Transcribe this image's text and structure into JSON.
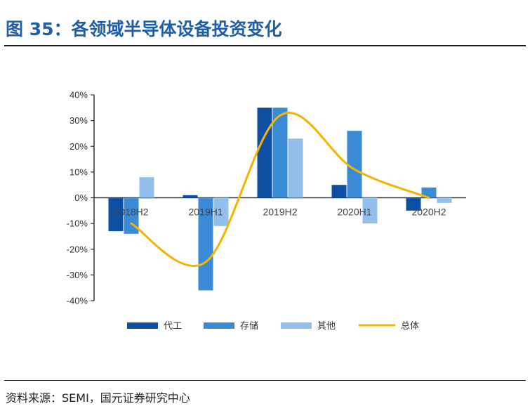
{
  "figure": {
    "title": "图 35：各领域半导体设备投资变化",
    "source": "资料来源：SEMI，国元证券研究中心"
  },
  "colors": {
    "title": "#1f5fa8",
    "foundry": "#0d4fa3",
    "memory": "#3a8ad6",
    "other": "#92c0ea",
    "total": "#f5b400"
  },
  "chart_data": {
    "type": "bar",
    "title": "各领域半导体设备投资变化",
    "categories": [
      "2018H2",
      "2019H1",
      "2019H2",
      "2020H1",
      "2020H2"
    ],
    "ylim": [
      -40,
      40
    ],
    "yticks": [
      40,
      30,
      20,
      10,
      0,
      -10,
      -20,
      -30,
      -40
    ],
    "ytick_labels": [
      "40%",
      "30%",
      "20%",
      "10%",
      "0%",
      "-10%",
      "-20%",
      "-30%",
      "-40%"
    ],
    "series": [
      {
        "name": "代工",
        "kind": "bar",
        "color_key": "foundry",
        "values": [
          -13,
          1,
          35,
          5,
          -5
        ]
      },
      {
        "name": "存储",
        "kind": "bar",
        "color_key": "memory",
        "values": [
          -14,
          -36,
          35,
          26,
          4
        ]
      },
      {
        "name": "其他",
        "kind": "bar",
        "color_key": "other",
        "values": [
          8,
          -11,
          23,
          -10,
          -2
        ]
      },
      {
        "name": "总体",
        "kind": "line",
        "smooth": true,
        "color_key": "total",
        "values": [
          -10,
          -25,
          32,
          11,
          0
        ]
      }
    ],
    "legend_position": "bottom",
    "grid": false
  }
}
